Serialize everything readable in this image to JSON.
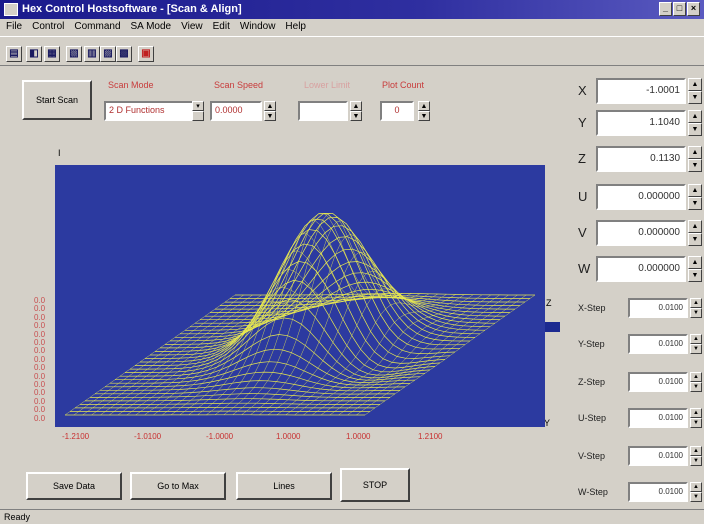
{
  "window": {
    "title": "Hex Control Hostsoftware - [Scan & Align]",
    "controls": [
      "_",
      "□",
      "×"
    ]
  },
  "menu": [
    "File",
    "Control",
    "Command",
    "SA Mode",
    "View",
    "Edit",
    "Window",
    "Help"
  ],
  "toolbar": {
    "icons": [
      "tool-1-icon",
      "tool-2-icon",
      "tool-3-icon",
      "tool-4-icon",
      "tool-5-icon",
      "tool-6-icon",
      "tool-7-icon",
      "tool-8-icon"
    ]
  },
  "scan": {
    "start_label": "Start Scan",
    "scan_mode_label": "Scan Mode",
    "scan_mode_value": "2 D Functions",
    "speed_label": "Scan Speed",
    "speed_value": "0.0000",
    "lower_limit_label": "Lower Limit",
    "lower_limit_value": "",
    "plot_count_label": "Plot Count",
    "plot_count_value": "0"
  },
  "plot": {
    "background": "#2c3aa0",
    "mesh_color": "#e8e850",
    "y_axis_label": "I",
    "x_axis_label": "Y",
    "z_axis_label": "Z",
    "y_ticks": [
      "0.0",
      "0.0",
      "0.0",
      "0.0",
      "0.0",
      "0.0",
      "0.0",
      "0.0",
      "0.0",
      "0.0",
      "0.0",
      "0.0",
      "0.0",
      "0.0",
      "0.0"
    ],
    "x_ticks": [
      "-1.2100",
      "-1.0100",
      "-1.0000",
      "1.0000",
      "1.0000",
      "1.2100"
    ]
  },
  "coords": [
    {
      "label": "X",
      "value": "-1.0001"
    },
    {
      "label": "Y",
      "value": "1.1040"
    },
    {
      "label": "Z",
      "value": "0.1130"
    },
    {
      "label": "U",
      "value": "0.000000"
    },
    {
      "label": "V",
      "value": "0.000000"
    },
    {
      "label": "W",
      "value": "0.000000"
    }
  ],
  "steps": [
    {
      "label": "X-Step",
      "value": "0.0100"
    },
    {
      "label": "Y-Step",
      "value": "0.0100"
    },
    {
      "label": "Z-Step",
      "value": "0.0100"
    },
    {
      "label": "U-Step",
      "value": "0.0100"
    },
    {
      "label": "V-Step",
      "value": "0.0100"
    },
    {
      "label": "W-Step",
      "value": "0.0100"
    }
  ],
  "actions": {
    "save_label": "Save Data",
    "goto_label": "Go to Max",
    "lines_label": "Lines",
    "stop_label": "STOP"
  },
  "status": "Ready"
}
